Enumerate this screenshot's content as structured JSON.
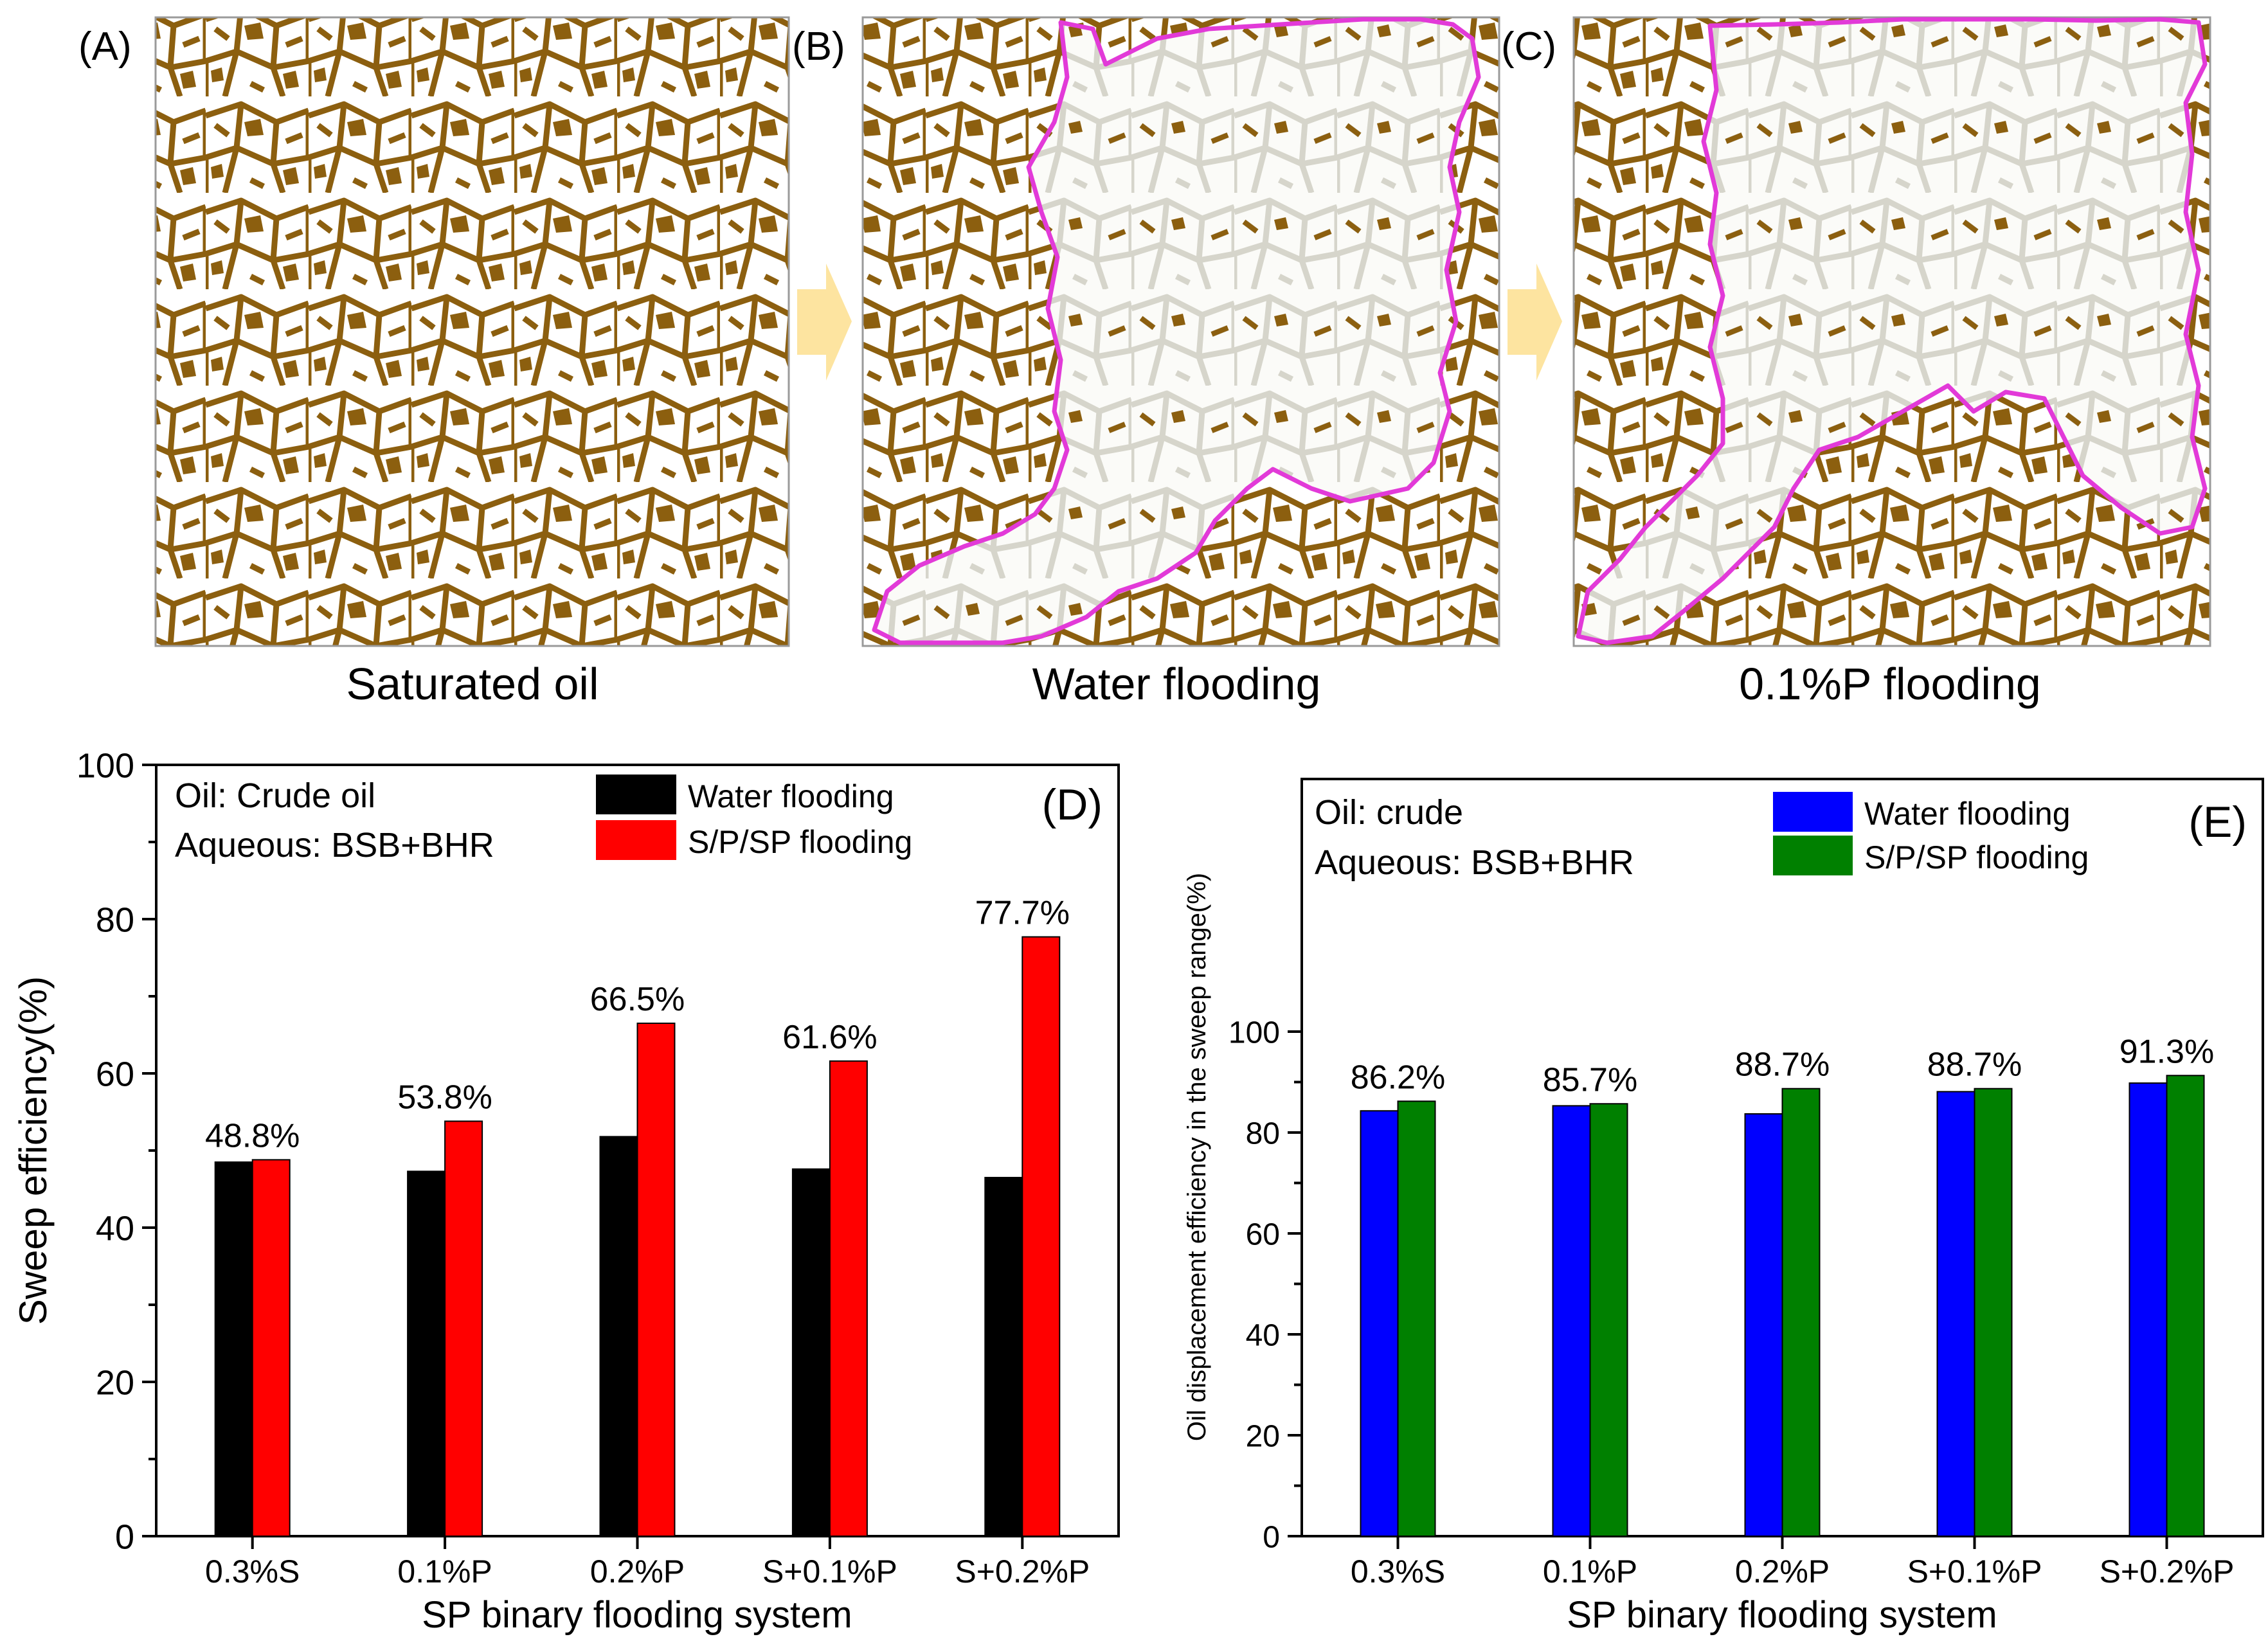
{
  "panels_top": [
    {
      "letter": "(A)",
      "caption": "Saturated oil"
    },
    {
      "letter": "(B)",
      "caption": "Water flooding"
    },
    {
      "letter": "(C)",
      "caption": "0.1%P flooding"
    }
  ],
  "colors": {
    "oil": "#8c5f0f",
    "water_swept": "#e9e8e0",
    "sweep_boundary": "#e23ad8",
    "arrow": "#fde4a0",
    "water_bar_D": "#000000",
    "sp_bar_D": "#ff0000",
    "water_bar_E": "#0000ff",
    "sp_bar_E": "#008000"
  },
  "chart_data": [
    {
      "type": "bar",
      "panel": "(D)",
      "annotation_lines": [
        "Oil: Crude oil",
        "Aqueous: BSB+BHR"
      ],
      "categories": [
        "0.3%S",
        "0.1%P",
        "0.2%P",
        "S+0.1%P",
        "S+0.2%P"
      ],
      "series": [
        {
          "name": "Water flooding",
          "values": [
            48.5,
            47.3,
            51.8,
            47.6,
            46.5
          ]
        },
        {
          "name": "S/P/SP flooding",
          "values": [
            48.8,
            53.8,
            66.5,
            61.6,
            77.7
          ]
        }
      ],
      "data_labels": [
        "48.8%",
        "53.8%",
        "66.5%",
        "61.6%",
        "77.7%"
      ],
      "xlabel": "SP binary flooding system",
      "ylabel": "Sweep efficiency(%)",
      "ylim": [
        0,
        100
      ],
      "yticks": [
        "0",
        "20",
        "40",
        "60",
        "80",
        "100"
      ],
      "legend_position": "top-center",
      "grid": false
    },
    {
      "type": "bar",
      "panel": "(E)",
      "annotation_lines": [
        "Oil: crude",
        "Aqueous: BSB+BHR"
      ],
      "categories": [
        "0.3%S",
        "0.1%P",
        "0.2%P",
        "S+0.1%P",
        "S+0.2%P"
      ],
      "series": [
        {
          "name": "Water flooding",
          "values": [
            84.3,
            85.3,
            83.7,
            88.1,
            89.8
          ]
        },
        {
          "name": "S/P/SP flooding",
          "values": [
            86.2,
            85.7,
            88.7,
            88.7,
            91.3
          ]
        }
      ],
      "data_labels": [
        "86.2%",
        "85.7%",
        "88.7%",
        "88.7%",
        "91.3%"
      ],
      "xlabel": "SP binary flooding system",
      "ylabel": "Oil displacement efficiency in the sweep range(%)",
      "ylim": [
        0,
        100
      ],
      "yticks": [
        "0",
        "20",
        "40",
        "60",
        "80",
        "100"
      ],
      "legend_position": "top-center",
      "grid": false
    }
  ]
}
